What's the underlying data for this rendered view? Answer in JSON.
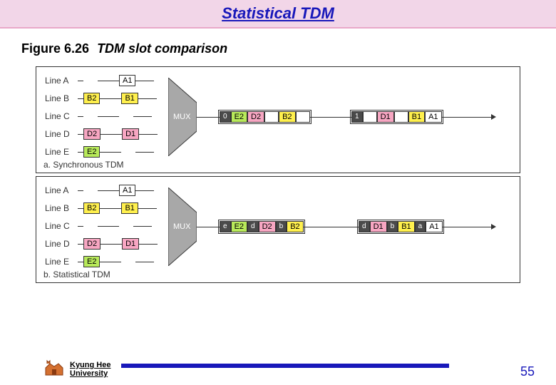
{
  "title": "Statistical TDM",
  "figure": {
    "num": "Figure 6.26",
    "caption": "TDM slot comparison"
  },
  "colors": {
    "A": "#ffffff",
    "B": "#fff04d",
    "D": "#f7a6c2",
    "E": "#b8ea5a",
    "addr": "#4a4a4a",
    "addr_text": "#ffffff",
    "mux_fill": "#a8a8a8",
    "title_bg": "#f2d6e8",
    "accent": "#1818ba"
  },
  "lines": [
    "Line A",
    "Line B",
    "Line C",
    "Line D",
    "Line E"
  ],
  "sync": {
    "label": "a. Synchronous TDM",
    "inputs": {
      "A": [
        null,
        "A1"
      ],
      "B": [
        "B2",
        "B1"
      ],
      "C": [
        null,
        null
      ],
      "D": [
        "D2",
        "D1"
      ],
      "E": [
        "E2",
        null
      ]
    },
    "frames": [
      {
        "slots": [
          {
            "t": "0",
            "k": "addr"
          },
          {
            "t": "E2",
            "k": "E"
          },
          {
            "t": "D2",
            "k": "D"
          },
          {
            "t": "",
            "k": "empty"
          },
          {
            "t": "B2",
            "k": "B"
          },
          {
            "t": "",
            "k": "empty"
          }
        ]
      },
      {
        "slots": [
          {
            "t": "1",
            "k": "addr"
          },
          {
            "t": "",
            "k": "empty"
          },
          {
            "t": "D1",
            "k": "D"
          },
          {
            "t": "",
            "k": "empty"
          },
          {
            "t": "B1",
            "k": "B"
          },
          {
            "t": "A1",
            "k": "A"
          }
        ]
      }
    ]
  },
  "stat": {
    "label": "b. Statistical TDM",
    "inputs": {
      "A": [
        null,
        "A1"
      ],
      "B": [
        "B2",
        "B1"
      ],
      "C": [
        null,
        null
      ],
      "D": [
        "D2",
        "D1"
      ],
      "E": [
        "E2",
        null
      ]
    },
    "frames": [
      {
        "slots": [
          {
            "t": "e",
            "k": "addr"
          },
          {
            "t": "E2",
            "k": "E"
          },
          {
            "t": "d",
            "k": "addr"
          },
          {
            "t": "D2",
            "k": "D"
          },
          {
            "t": "b",
            "k": "addr"
          },
          {
            "t": "B2",
            "k": "B"
          }
        ]
      },
      {
        "slots": [
          {
            "t": "d",
            "k": "addr"
          },
          {
            "t": "D1",
            "k": "D"
          },
          {
            "t": "b",
            "k": "addr"
          },
          {
            "t": "B1",
            "k": "B"
          },
          {
            "t": "a",
            "k": "addr"
          },
          {
            "t": "A1",
            "k": "A"
          }
        ]
      }
    ]
  },
  "mux_label": "MUX",
  "university": {
    "line1": "Kyung Hee",
    "line2": "University"
  },
  "page": "55"
}
